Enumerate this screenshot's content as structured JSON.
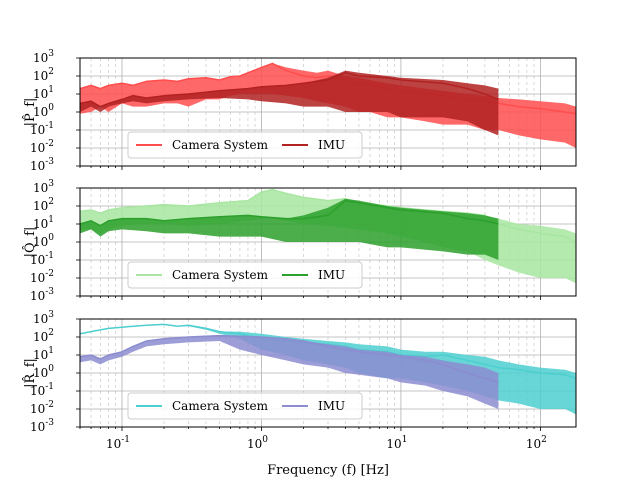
{
  "chart_data": [
    {
      "type": "line",
      "ylabel": "|P̂_f|",
      "xscale": "log",
      "yscale": "log",
      "xlim": [
        0.05,
        180
      ],
      "ylim": [
        0.001,
        1000
      ],
      "grid": true,
      "legend": {
        "loc": "lower-center",
        "ncol": 2
      },
      "series": [
        {
          "name": "Camera System",
          "color": "#ff4d4d",
          "x": [
            0.05,
            0.06,
            0.07,
            0.08,
            0.1,
            0.12,
            0.15,
            0.2,
            0.25,
            0.3,
            0.4,
            0.5,
            0.6,
            0.7,
            0.8,
            1.0,
            1.2,
            1.5,
            2.0,
            2.5,
            3.0,
            4.0,
            5.0,
            6.0,
            8.0,
            10,
            15,
            20,
            30,
            40,
            50,
            70,
            100,
            150,
            180
          ],
          "y": [
            20,
            30,
            20,
            30,
            40,
            30,
            50,
            60,
            50,
            70,
            80,
            60,
            90,
            100,
            150,
            300,
            500,
            200,
            100,
            80,
            100,
            60,
            30,
            40,
            20,
            15,
            10,
            8,
            5,
            4,
            3,
            2,
            1.5,
            1,
            0.8
          ],
          "band_low": [
            0.8,
            1,
            2,
            1,
            3,
            2,
            2,
            3,
            3,
            2,
            5,
            5,
            8,
            10,
            10,
            10,
            10,
            8,
            6,
            4,
            3,
            2,
            1,
            1,
            0.5,
            0.5,
            0.3,
            0.2,
            0.2,
            0.1,
            0.1,
            0.05,
            0.03,
            0.02,
            0.01
          ],
          "band_high": [
            20,
            30,
            20,
            30,
            40,
            30,
            50,
            60,
            50,
            70,
            80,
            60,
            90,
            100,
            150,
            300,
            500,
            300,
            200,
            150,
            200,
            100,
            80,
            60,
            40,
            30,
            20,
            15,
            10,
            8,
            6,
            5,
            4,
            3,
            2
          ]
        },
        {
          "name": "IMU",
          "color": "#b22222",
          "x": [
            0.05,
            0.06,
            0.07,
            0.08,
            0.1,
            0.12,
            0.15,
            0.2,
            0.3,
            0.5,
            0.8,
            1.0,
            1.5,
            2.0,
            3.0,
            4.0,
            5.0,
            8.0,
            10,
            20,
            30,
            40,
            50
          ],
          "y": [
            3,
            4,
            2,
            3,
            5,
            8,
            6,
            8,
            10,
            15,
            20,
            25,
            30,
            40,
            60,
            150,
            100,
            80,
            60,
            40,
            20,
            10,
            5
          ],
          "band_low": [
            1,
            2,
            1,
            2,
            3,
            4,
            3,
            4,
            5,
            6,
            5,
            4,
            3,
            2,
            2,
            1,
            1,
            1,
            0.5,
            0.5,
            0.3,
            0.1,
            0.05
          ],
          "band_high": [
            3,
            4,
            2,
            3,
            5,
            8,
            6,
            8,
            10,
            15,
            20,
            25,
            30,
            40,
            80,
            200,
            150,
            100,
            80,
            60,
            40,
            30,
            20
          ]
        }
      ]
    },
    {
      "type": "line",
      "ylabel": "|Q̂_f|",
      "xscale": "log",
      "yscale": "log",
      "xlim": [
        0.05,
        180
      ],
      "ylim": [
        0.001,
        1000
      ],
      "grid": true,
      "legend": {
        "loc": "lower-center",
        "ncol": 2
      },
      "series": [
        {
          "name": "Camera System",
          "color": "#a8e6a1",
          "x": [
            0.05,
            0.06,
            0.07,
            0.08,
            0.1,
            0.15,
            0.2,
            0.3,
            0.5,
            0.8,
            1.0,
            1.2,
            1.5,
            2.0,
            3.0,
            4.0,
            5.0,
            8.0,
            10,
            15,
            20,
            30,
            40,
            50,
            70,
            100,
            150,
            180
          ],
          "y": [
            50,
            60,
            40,
            60,
            80,
            100,
            120,
            100,
            150,
            200,
            600,
            800,
            500,
            300,
            200,
            250,
            150,
            100,
            80,
            60,
            50,
            40,
            30,
            10,
            5,
            3,
            2,
            1
          ],
          "band_low": [
            5,
            5,
            3,
            5,
            8,
            10,
            10,
            8,
            10,
            15,
            20,
            20,
            15,
            10,
            8,
            6,
            5,
            3,
            2,
            1,
            0.5,
            0.3,
            0.1,
            0.05,
            0.02,
            0.01,
            0.01,
            0.005
          ],
          "band_high": [
            50,
            60,
            40,
            60,
            80,
            100,
            120,
            100,
            150,
            200,
            600,
            800,
            500,
            300,
            200,
            250,
            150,
            100,
            80,
            60,
            50,
            40,
            30,
            20,
            10,
            8,
            5,
            3
          ]
        },
        {
          "name": "IMU",
          "color": "#2ca02c",
          "x": [
            0.05,
            0.06,
            0.07,
            0.08,
            0.1,
            0.15,
            0.2,
            0.3,
            0.5,
            0.8,
            1.0,
            1.5,
            2.0,
            3.0,
            4.0,
            5.0,
            8.0,
            10,
            20,
            30,
            40,
            50
          ],
          "y": [
            10,
            15,
            8,
            15,
            20,
            20,
            15,
            20,
            25,
            30,
            25,
            20,
            20,
            30,
            200,
            150,
            80,
            60,
            40,
            20,
            15,
            10
          ],
          "band_low": [
            3,
            5,
            2,
            4,
            5,
            4,
            3,
            3,
            2,
            2,
            2,
            1,
            1,
            1,
            1,
            1,
            0.5,
            0.5,
            0.3,
            0.2,
            0.2,
            0.1
          ],
          "band_high": [
            10,
            15,
            8,
            15,
            20,
            20,
            15,
            20,
            25,
            30,
            25,
            20,
            30,
            80,
            250,
            200,
            100,
            80,
            50,
            40,
            30,
            20
          ]
        }
      ]
    },
    {
      "type": "line",
      "ylabel": "|R̂_f|",
      "xlabel": "Frequency (f) [Hz]",
      "xscale": "log",
      "yscale": "log",
      "xlim": [
        0.05,
        180
      ],
      "ylim": [
        0.001,
        1000
      ],
      "grid": true,
      "legend": {
        "loc": "lower-center",
        "ncol": 2
      },
      "series": [
        {
          "name": "Camera System",
          "color": "#4dcfcf",
          "x": [
            0.05,
            0.06,
            0.08,
            0.1,
            0.15,
            0.2,
            0.25,
            0.3,
            0.4,
            0.5,
            0.7,
            1.0,
            1.5,
            2.0,
            3.0,
            4.0,
            5.0,
            8.0,
            10,
            15,
            20,
            30,
            40,
            50,
            70,
            100,
            150,
            180
          ],
          "y": [
            150,
            200,
            300,
            350,
            450,
            500,
            400,
            450,
            300,
            200,
            150,
            80,
            60,
            50,
            40,
            30,
            20,
            15,
            10,
            8,
            10,
            5,
            3,
            2,
            1.5,
            1,
            0.8,
            0.5
          ],
          "band_low": [
            150,
            200,
            300,
            350,
            450,
            500,
            400,
            400,
            250,
            150,
            80,
            20,
            10,
            5,
            3,
            2,
            1,
            0.5,
            0.5,
            0.3,
            0.2,
            0.1,
            0.05,
            0.03,
            0.02,
            0.01,
            0.01,
            0.005
          ],
          "band_high": [
            150,
            200,
            300,
            350,
            450,
            500,
            400,
            450,
            300,
            200,
            200,
            150,
            100,
            80,
            60,
            50,
            40,
            30,
            20,
            15,
            15,
            10,
            8,
            5,
            3,
            2,
            1.5,
            1
          ]
        },
        {
          "name": "IMU",
          "color": "#8c8cd1",
          "x": [
            0.05,
            0.06,
            0.07,
            0.08,
            0.1,
            0.12,
            0.15,
            0.2,
            0.3,
            0.5,
            0.7,
            1.0,
            1.5,
            2.0,
            3.0,
            4.0,
            5.0,
            8.0,
            10,
            15,
            20,
            30,
            40,
            50
          ],
          "y": [
            8,
            10,
            6,
            10,
            15,
            30,
            60,
            80,
            100,
            120,
            110,
            100,
            80,
            60,
            30,
            20,
            15,
            10,
            8,
            5,
            3,
            1,
            0.5,
            0.3
          ],
          "band_low": [
            4,
            5,
            3,
            5,
            8,
            15,
            30,
            40,
            50,
            60,
            20,
            10,
            5,
            3,
            2,
            1,
            0.8,
            0.5,
            0.3,
            0.2,
            0.1,
            0.05,
            0.02,
            0.01
          ],
          "band_high": [
            8,
            10,
            6,
            10,
            15,
            30,
            60,
            80,
            100,
            120,
            110,
            100,
            80,
            60,
            40,
            30,
            20,
            15,
            10,
            8,
            5,
            3,
            2,
            1
          ]
        }
      ]
    }
  ]
}
